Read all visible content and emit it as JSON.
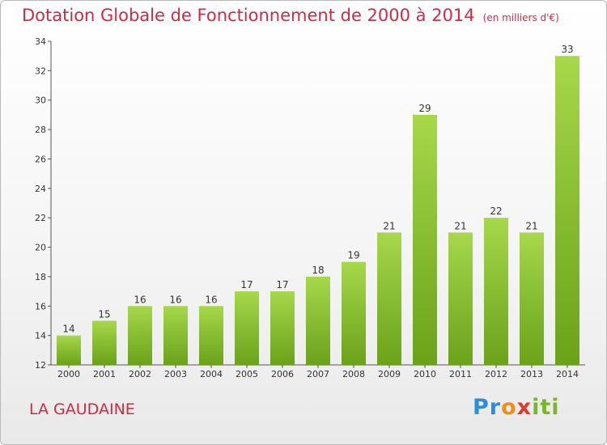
{
  "header": {
    "title": "Dotation Globale de Fonctionnement de 2000 à 2014",
    "subtitle": "(en milliers d'€)"
  },
  "footer": {
    "commune": "LA GAUDAINE",
    "logo": {
      "p1": "Pr",
      "p2": "o",
      "p3": "x",
      "p4": "iti"
    }
  },
  "colors": {
    "bar_light": "#a6d84a",
    "bar_dark": "#6aa21a",
    "title": "#d02a42"
  },
  "chart_data": {
    "type": "bar",
    "title": "Dotation Globale de Fonctionnement de 2000 à 2014",
    "subtitle": "(en milliers d'€)",
    "categories": [
      "2000",
      "2001",
      "2002",
      "2003",
      "2004",
      "2005",
      "2006",
      "2007",
      "2008",
      "2009",
      "2010",
      "2011",
      "2012",
      "2013",
      "2014"
    ],
    "values": [
      14,
      15,
      16,
      16,
      16,
      17,
      17,
      18,
      19,
      21,
      29,
      21,
      22,
      21,
      33
    ],
    "ylim": [
      12,
      34
    ],
    "yticks": [
      12,
      14,
      16,
      18,
      20,
      22,
      24,
      26,
      28,
      30,
      32,
      34
    ],
    "grid": false,
    "data_labels": true
  }
}
